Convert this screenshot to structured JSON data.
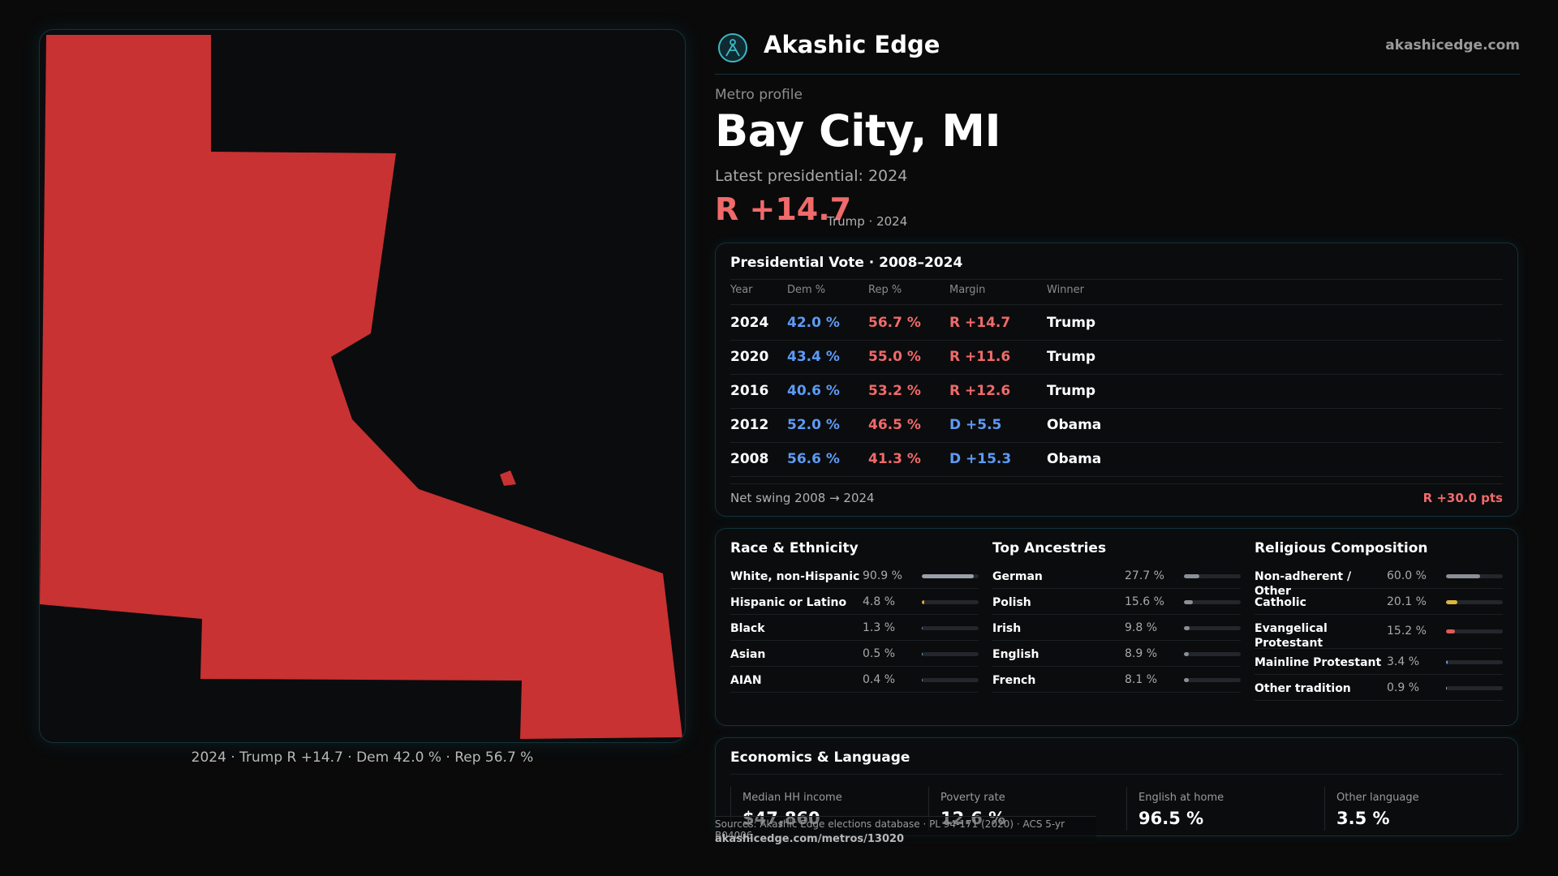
{
  "brand": {
    "name": "Akashic Edge",
    "url": "akashicedge.com",
    "logo_icon": "akashic-logo-icon"
  },
  "profile": {
    "eyebrow": "Metro profile",
    "title": "Bay City, MI",
    "subtitle": "Latest presidential: 2024",
    "margin": "R +14.7",
    "margin_note": "Trump · 2024"
  },
  "map": {
    "caption": "2024 · Trump R +14.7 · Dem 42.0 % · Rep 56.7 %",
    "fill_color": "#c83232"
  },
  "vote": {
    "title": "Presidential Vote · 2008–2024",
    "headers": {
      "year": "Year",
      "dem": "Dem %",
      "rep": "Rep %",
      "margin": "Margin",
      "winner": "Winner"
    },
    "rows": [
      {
        "year": "2024",
        "dem": "42.0 %",
        "rep": "56.7 %",
        "margin": "R +14.7",
        "winner": "Trump"
      },
      {
        "year": "2020",
        "dem": "43.4 %",
        "rep": "55.0 %",
        "margin": "R +11.6",
        "winner": "Trump"
      },
      {
        "year": "2016",
        "dem": "40.6 %",
        "rep": "53.2 %",
        "margin": "R +12.6",
        "winner": "Trump"
      },
      {
        "year": "2012",
        "dem": "52.0 %",
        "rep": "46.5 %",
        "margin": "D +5.5",
        "winner": "Obama"
      },
      {
        "year": "2008",
        "dem": "56.6 %",
        "rep": "41.3 %",
        "margin": "D +15.3",
        "winner": "Obama"
      }
    ],
    "swing_label": "Net swing 2008 → 2024",
    "swing_value": "R +30.0 pts"
  },
  "race": {
    "title": "Race & Ethnicity",
    "items": [
      {
        "label": "White, non-Hispanic",
        "value": "90.9 %",
        "level": 0.909,
        "color": "#9aa0a8"
      },
      {
        "label": "Hispanic or Latino",
        "value": "4.8 %",
        "level": 0.048,
        "color": "#e8a23a"
      },
      {
        "label": "Black",
        "value": "1.3 %",
        "level": 0.013,
        "color": "#7a7fd8"
      },
      {
        "label": "Asian",
        "value": "0.5 %",
        "level": 0.005,
        "color": "#5fb8c8"
      },
      {
        "label": "AIAN",
        "value": "0.4 %",
        "level": 0.004,
        "color": "#8a8a8a"
      }
    ]
  },
  "ancestry": {
    "title": "Top Ancestries",
    "items": [
      {
        "label": "German",
        "value": "27.7 %",
        "level": 0.277,
        "color": "#8a9098"
      },
      {
        "label": "Polish",
        "value": "15.6 %",
        "level": 0.156,
        "color": "#8a9098"
      },
      {
        "label": "Irish",
        "value": "9.8 %",
        "level": 0.098,
        "color": "#8a9098"
      },
      {
        "label": "English",
        "value": "8.9 %",
        "level": 0.089,
        "color": "#8a9098"
      },
      {
        "label": "French",
        "value": "8.1 %",
        "level": 0.081,
        "color": "#8a9098"
      }
    ]
  },
  "religion": {
    "title": "Religious Composition",
    "items": [
      {
        "label": "Non-adherent / Other",
        "value": "60.0 %",
        "level": 0.6,
        "color": "#8a9098"
      },
      {
        "label": "Catholic",
        "value": "20.1 %",
        "level": 0.201,
        "color": "#e0b53a"
      },
      {
        "label": "Evangelical Protestant",
        "value": "15.2 %",
        "level": 0.152,
        "color": "#e05a5a"
      },
      {
        "label": "Mainline Protestant",
        "value": "3.4 %",
        "level": 0.034,
        "color": "#5d9bf5"
      },
      {
        "label": "Other tradition",
        "value": "0.9 %",
        "level": 0.009,
        "color": "#b0b0b0"
      }
    ]
  },
  "economics": {
    "title": "Economics & Language",
    "items": [
      {
        "label": "Median HH income",
        "value": "$47,860"
      },
      {
        "label": "Poverty rate",
        "value": "12.6 %"
      },
      {
        "label": "English at home",
        "value": "96.5 %"
      },
      {
        "label": "Other language",
        "value": "3.5 %"
      }
    ]
  },
  "footer": {
    "sources": "Sources: Akashic Edge elections database · PL 94-171 (2020) · ACS 5-yr B04006",
    "url": "akashicedge.com/metros/13020"
  }
}
